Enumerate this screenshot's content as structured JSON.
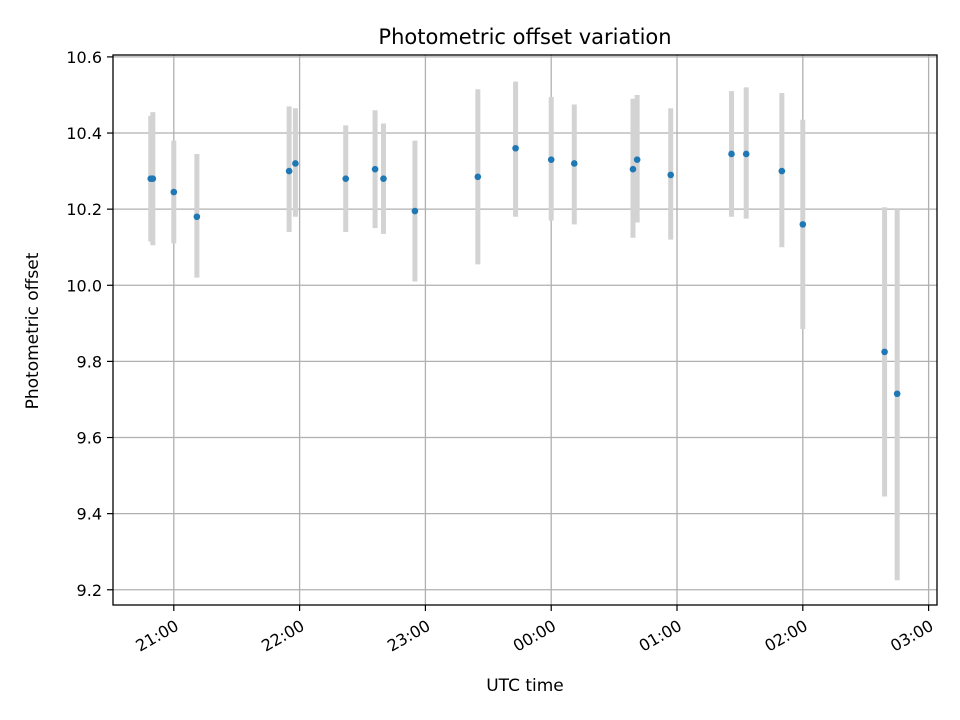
{
  "chart_data": {
    "type": "scatter",
    "title": "Photometric offset variation",
    "xlabel": "UTC time",
    "ylabel": "Photometric offset",
    "grid": true,
    "ylim": [
      9.16,
      10.605
    ],
    "xlim": [
      "20:31",
      "03:04"
    ],
    "yticks": [
      "9.2",
      "9.4",
      "9.6",
      "9.8",
      "10.0",
      "10.2",
      "10.4",
      "10.6"
    ],
    "xticks": [
      "21:00",
      "22:00",
      "23:00",
      "00:00",
      "01:00",
      "02:00",
      "03:00"
    ],
    "colors": {
      "points": "#1f77b4",
      "errorbars": "#d3d3d3",
      "grid": "#b0b0b0"
    },
    "points": [
      {
        "x": "20:49",
        "y": 10.28,
        "ylow": 10.115,
        "yhigh": 10.445
      },
      {
        "x": "20:50",
        "y": 10.28,
        "ylow": 10.105,
        "yhigh": 10.455
      },
      {
        "x": "21:00",
        "y": 10.245,
        "ylow": 10.11,
        "yhigh": 10.38
      },
      {
        "x": "21:11",
        "y": 10.18,
        "ylow": 10.02,
        "yhigh": 10.345
      },
      {
        "x": "21:55",
        "y": 10.3,
        "ylow": 10.14,
        "yhigh": 10.47
      },
      {
        "x": "21:58",
        "y": 10.32,
        "ylow": 10.18,
        "yhigh": 10.465
      },
      {
        "x": "22:22",
        "y": 10.28,
        "ylow": 10.14,
        "yhigh": 10.42
      },
      {
        "x": "22:36",
        "y": 10.305,
        "ylow": 10.15,
        "yhigh": 10.46
      },
      {
        "x": "22:40",
        "y": 10.28,
        "ylow": 10.135,
        "yhigh": 10.425
      },
      {
        "x": "22:55",
        "y": 10.195,
        "ylow": 10.01,
        "yhigh": 10.38
      },
      {
        "x": "23:25",
        "y": 10.285,
        "ylow": 10.055,
        "yhigh": 10.515
      },
      {
        "x": "23:43",
        "y": 10.36,
        "ylow": 10.18,
        "yhigh": 10.535
      },
      {
        "x": "00:00",
        "y": 10.33,
        "ylow": 10.17,
        "yhigh": 10.495
      },
      {
        "x": "00:11",
        "y": 10.32,
        "ylow": 10.16,
        "yhigh": 10.475
      },
      {
        "x": "00:39",
        "y": 10.305,
        "ylow": 10.125,
        "yhigh": 10.49
      },
      {
        "x": "00:41",
        "y": 10.33,
        "ylow": 10.165,
        "yhigh": 10.5
      },
      {
        "x": "00:57",
        "y": 10.29,
        "ylow": 10.12,
        "yhigh": 10.465
      },
      {
        "x": "01:26",
        "y": 10.345,
        "ylow": 10.18,
        "yhigh": 10.51
      },
      {
        "x": "01:33",
        "y": 10.345,
        "ylow": 10.175,
        "yhigh": 10.52
      },
      {
        "x": "01:50",
        "y": 10.3,
        "ylow": 10.1,
        "yhigh": 10.505
      },
      {
        "x": "02:00",
        "y": 10.16,
        "ylow": 9.885,
        "yhigh": 10.435
      },
      {
        "x": "02:39",
        "y": 9.825,
        "ylow": 9.445,
        "yhigh": 10.205
      },
      {
        "x": "02:45",
        "y": 9.715,
        "ylow": 9.225,
        "yhigh": 10.2
      }
    ]
  }
}
